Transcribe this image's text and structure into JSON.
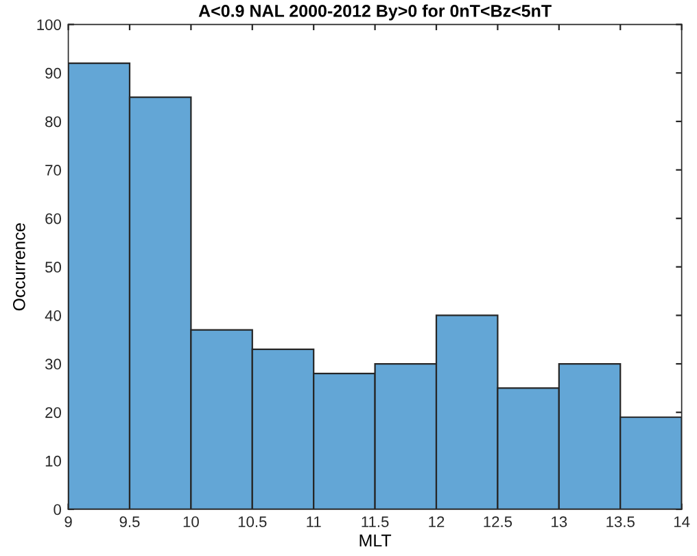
{
  "chart_data": {
    "type": "histogram",
    "title": "A<0.9 NAL 2000-2012 By>0 for 0nT<Bz<5nT",
    "xlabel": "MLT",
    "ylabel": "Occurrence",
    "bins": [
      9,
      9.5,
      10,
      10.5,
      11,
      11.5,
      12,
      12.5,
      13,
      13.5,
      14
    ],
    "values": [
      92,
      85,
      37,
      33,
      28,
      30,
      40,
      25,
      30,
      19
    ],
    "color": "#63a6d6",
    "xlim": [
      9,
      14
    ],
    "xticks": [
      9,
      9.5,
      10,
      10.5,
      11,
      11.5,
      12,
      12.5,
      13,
      13.5,
      14
    ],
    "ylim": [
      0,
      100
    ],
    "yticks": [
      0,
      10,
      20,
      30,
      40,
      50,
      60,
      70,
      80,
      90,
      100
    ],
    "grid": false
  }
}
